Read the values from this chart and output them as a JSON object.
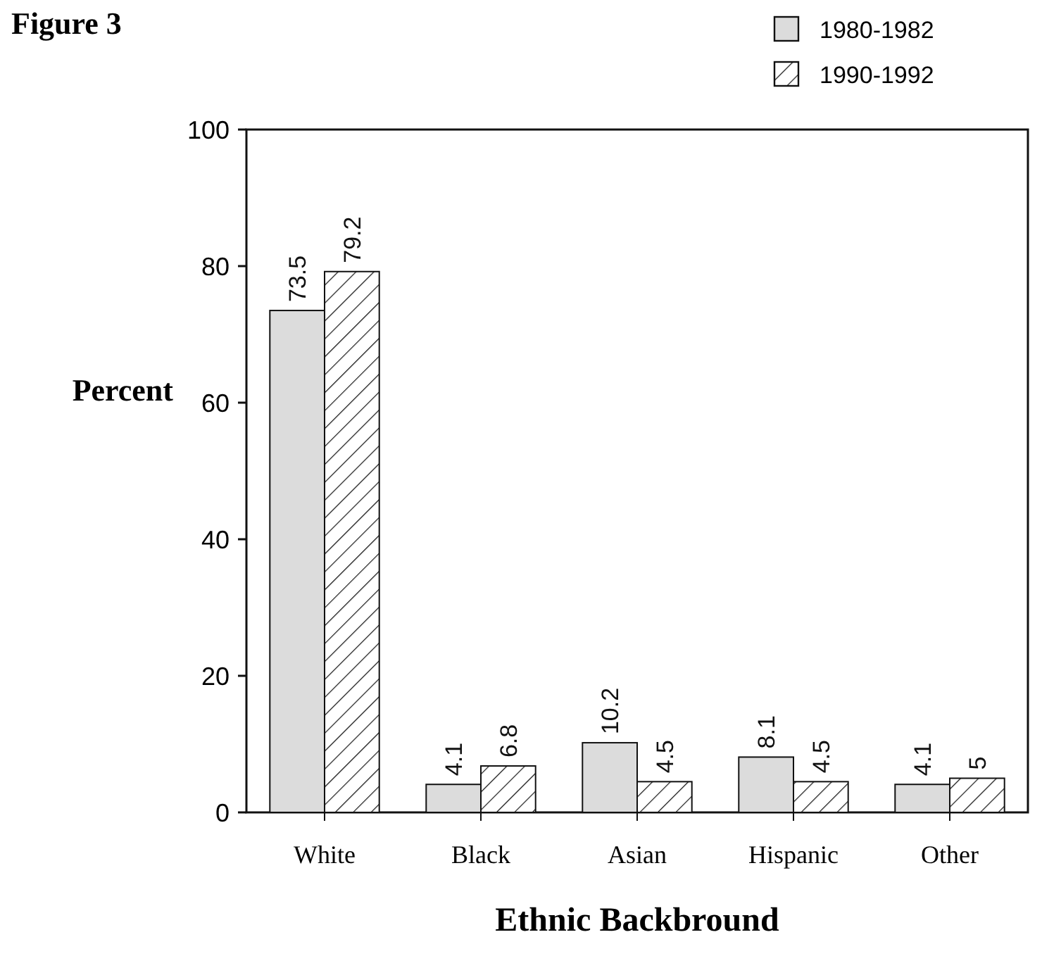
{
  "chart_data": {
    "type": "bar",
    "title": "Figure 3",
    "xlabel": "Ethnic Backbround",
    "ylabel": "Percent",
    "categories": [
      "White",
      "Black",
      "Asian",
      "Hispanic",
      "Other"
    ],
    "series": [
      {
        "name": "1980-1982",
        "color": "#dcdcdc",
        "values": [
          73.5,
          4.1,
          10.2,
          8.1,
          4.1
        ]
      },
      {
        "name": "1990-1992",
        "color": "#111111",
        "values": [
          79.2,
          6.8,
          4.5,
          4.5,
          5
        ]
      }
    ],
    "ylim": [
      0,
      100
    ],
    "yticks": [
      0,
      20,
      40,
      60,
      80,
      100
    ],
    "data_labels": true,
    "legend": "top right",
    "grid": false
  }
}
